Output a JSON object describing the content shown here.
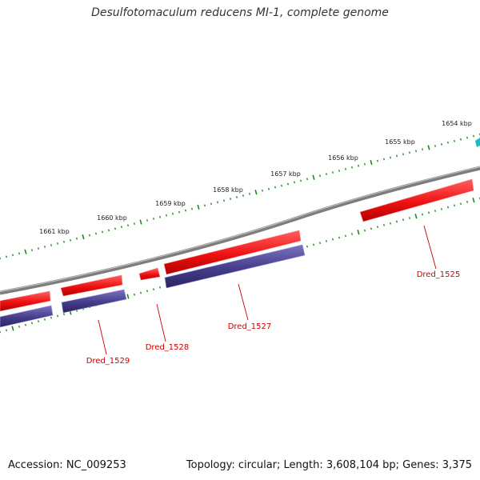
{
  "title": "Desulfotomaculum reducens MI-1, complete genome",
  "footer": {
    "accession": "Accession: NC_009253",
    "topology": "Topology: circular; Length: 3,608,104 bp; Genes: 3,375"
  },
  "colors": {
    "backbone": "#888888",
    "plus_strand_gene": "#ee1111",
    "minus_strand_gene": "#443d8a",
    "tick": "#228822",
    "label": "#cc0000",
    "edge_feature": "#20b8c8"
  },
  "scale_ticks": [
    "1654 kbp",
    "1655 kbp",
    "1656 kbp",
    "1657 kbp",
    "1658 kbp",
    "1659 kbp",
    "1660 kbp",
    "1661 kbp"
  ],
  "genes": [
    {
      "label": "Dred_1525"
    },
    {
      "label": "Dred_1527"
    },
    {
      "label": "Dred_1528"
    },
    {
      "label": "Dred_1529"
    }
  ]
}
